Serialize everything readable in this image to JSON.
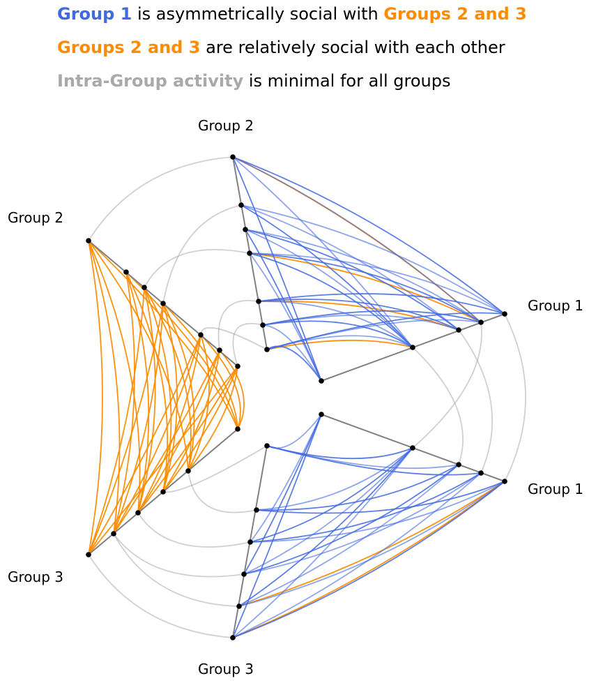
{
  "headline": {
    "line1": {
      "strong1": "Group 1",
      "mid": " is asymmetrically social with ",
      "strong2": "Groups 2 and 3"
    },
    "line2": {
      "strong": "Groups 2 and 3",
      "rest": " are relatively social with each other"
    },
    "line3": {
      "strong": "Intra-Group activity",
      "rest": " is minimal for all groups"
    }
  },
  "axis_labels": {
    "g1_upper": "Group 1",
    "g1_lower": "Group 1",
    "g2_upper": "Group 2",
    "g2_left": "Group 2",
    "g3_left": "Group 3",
    "g3_lower": "Group 3"
  },
  "colors": {
    "group1": "#4169E1",
    "groups23": "#FF8C00",
    "intra": "#A9A9A9",
    "axis": "#808080",
    "node": "#000000"
  }
}
